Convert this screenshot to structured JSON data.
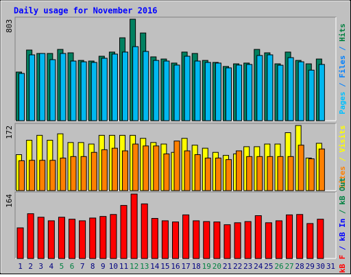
{
  "chart_data": [
    {
      "type": "bar",
      "title": "Daily usage for November 2016",
      "ylim": [
        0,
        803
      ],
      "axis_label_parts": [
        {
          "text": "Pages",
          "color": "#00c0ff"
        },
        {
          "text": " / ",
          "color": "#0080ff"
        },
        {
          "text": "Files",
          "color": "#0080ff"
        },
        {
          "text": " / ",
          "color": "#0080ff"
        },
        {
          "text": "Hits",
          "color": "#008040"
        }
      ],
      "series": [
        {
          "name": "Hits",
          "color": "#008060",
          "values": [
            385,
            559,
            532,
            532,
            564,
            537,
            477,
            472,
            510,
            543,
            656,
            803,
            694,
            505,
            488,
            456,
            543,
            532,
            477,
            461,
            429,
            450,
            456,
            564,
            537,
            450,
            543,
            477,
            450,
            488,
            null
          ]
        },
        {
          "name": "Files",
          "color": "#00b8f0",
          "values": [
            374,
            521,
            532,
            483,
            532,
            472,
            466,
            461,
            494,
            527,
            543,
            586,
            548,
            477,
            472,
            440,
            510,
            472,
            461,
            456,
            418,
            440,
            445,
            516,
            521,
            439,
            499,
            466,
            400,
            445,
            null
          ]
        }
      ]
    },
    {
      "type": "bar",
      "ylim": [
        0,
        172
      ],
      "axis_label_parts": [
        {
          "text": "Sites",
          "color": "#ff8000"
        },
        {
          "text": " / ",
          "color": "#ffff00"
        },
        {
          "text": "Visits",
          "color": "#ffff00"
        }
      ],
      "series": [
        {
          "name": "Visits",
          "color": "#ffff00",
          "values": [
            95,
            133,
            146,
            133,
            150,
            127,
            127,
            123,
            146,
            146,
            146,
            146,
            138,
            127,
            123,
            101,
            138,
            120,
            112,
            101,
            93,
            97,
            116,
            116,
            123,
            123,
            153,
            172,
            86,
            125,
            null
          ]
        },
        {
          "name": "Sites",
          "color": "#ff8000",
          "values": [
            79,
            80,
            80,
            80,
            86,
            90,
            90,
            101,
            108,
            112,
            105,
            123,
            118,
            118,
            97,
            131,
            105,
            95,
            86,
            86,
            82,
            105,
            90,
            90,
            90,
            90,
            90,
            120,
            84,
            110,
            null
          ]
        }
      ]
    },
    {
      "type": "bar",
      "ylim": [
        0,
        164
      ],
      "axis_label_parts": [
        {
          "text": "kB F",
          "color": "#ff0000"
        },
        {
          "text": " / ",
          "color": "#0000ff"
        },
        {
          "text": "kB In",
          "color": "#0000ff"
        },
        {
          "text": " / ",
          "color": "#008040"
        },
        {
          "text": "kB Out",
          "color": "#008040"
        }
      ],
      "categories": [
        "1",
        "2",
        "3",
        "4",
        "5",
        "6",
        "7",
        "8",
        "9",
        "10",
        "11",
        "12",
        "13",
        "14",
        "15",
        "16",
        "17",
        "18",
        "19",
        "20",
        "21",
        "22",
        "23",
        "24",
        "25",
        "26",
        "27",
        "28",
        "29",
        "30",
        "31"
      ],
      "category_colors": [
        "#000080",
        "#000080",
        "#000080",
        "#000080",
        "#008040",
        "#008040",
        "#000080",
        "#000080",
        "#000080",
        "#000080",
        "#000080",
        "#008040",
        "#008040",
        "#000080",
        "#000080",
        "#000080",
        "#000080",
        "#000080",
        "#008040",
        "#008040",
        "#000080",
        "#000080",
        "#000080",
        "#000080",
        "#000080",
        "#008040",
        "#008040",
        "#000080",
        "#000080",
        "#000080",
        "#000080"
      ],
      "series": [
        {
          "name": "kB F",
          "color": "#ff0000",
          "values": [
            78,
            114,
            105,
            96,
            105,
            100,
            96,
            103,
            107,
            112,
            135,
            164,
            139,
            102,
            96,
            93,
            111,
            96,
            94,
            93,
            86,
            91,
            94,
            109,
            91,
            96,
            111,
            112,
            89,
            100,
            null
          ]
        }
      ]
    }
  ]
}
